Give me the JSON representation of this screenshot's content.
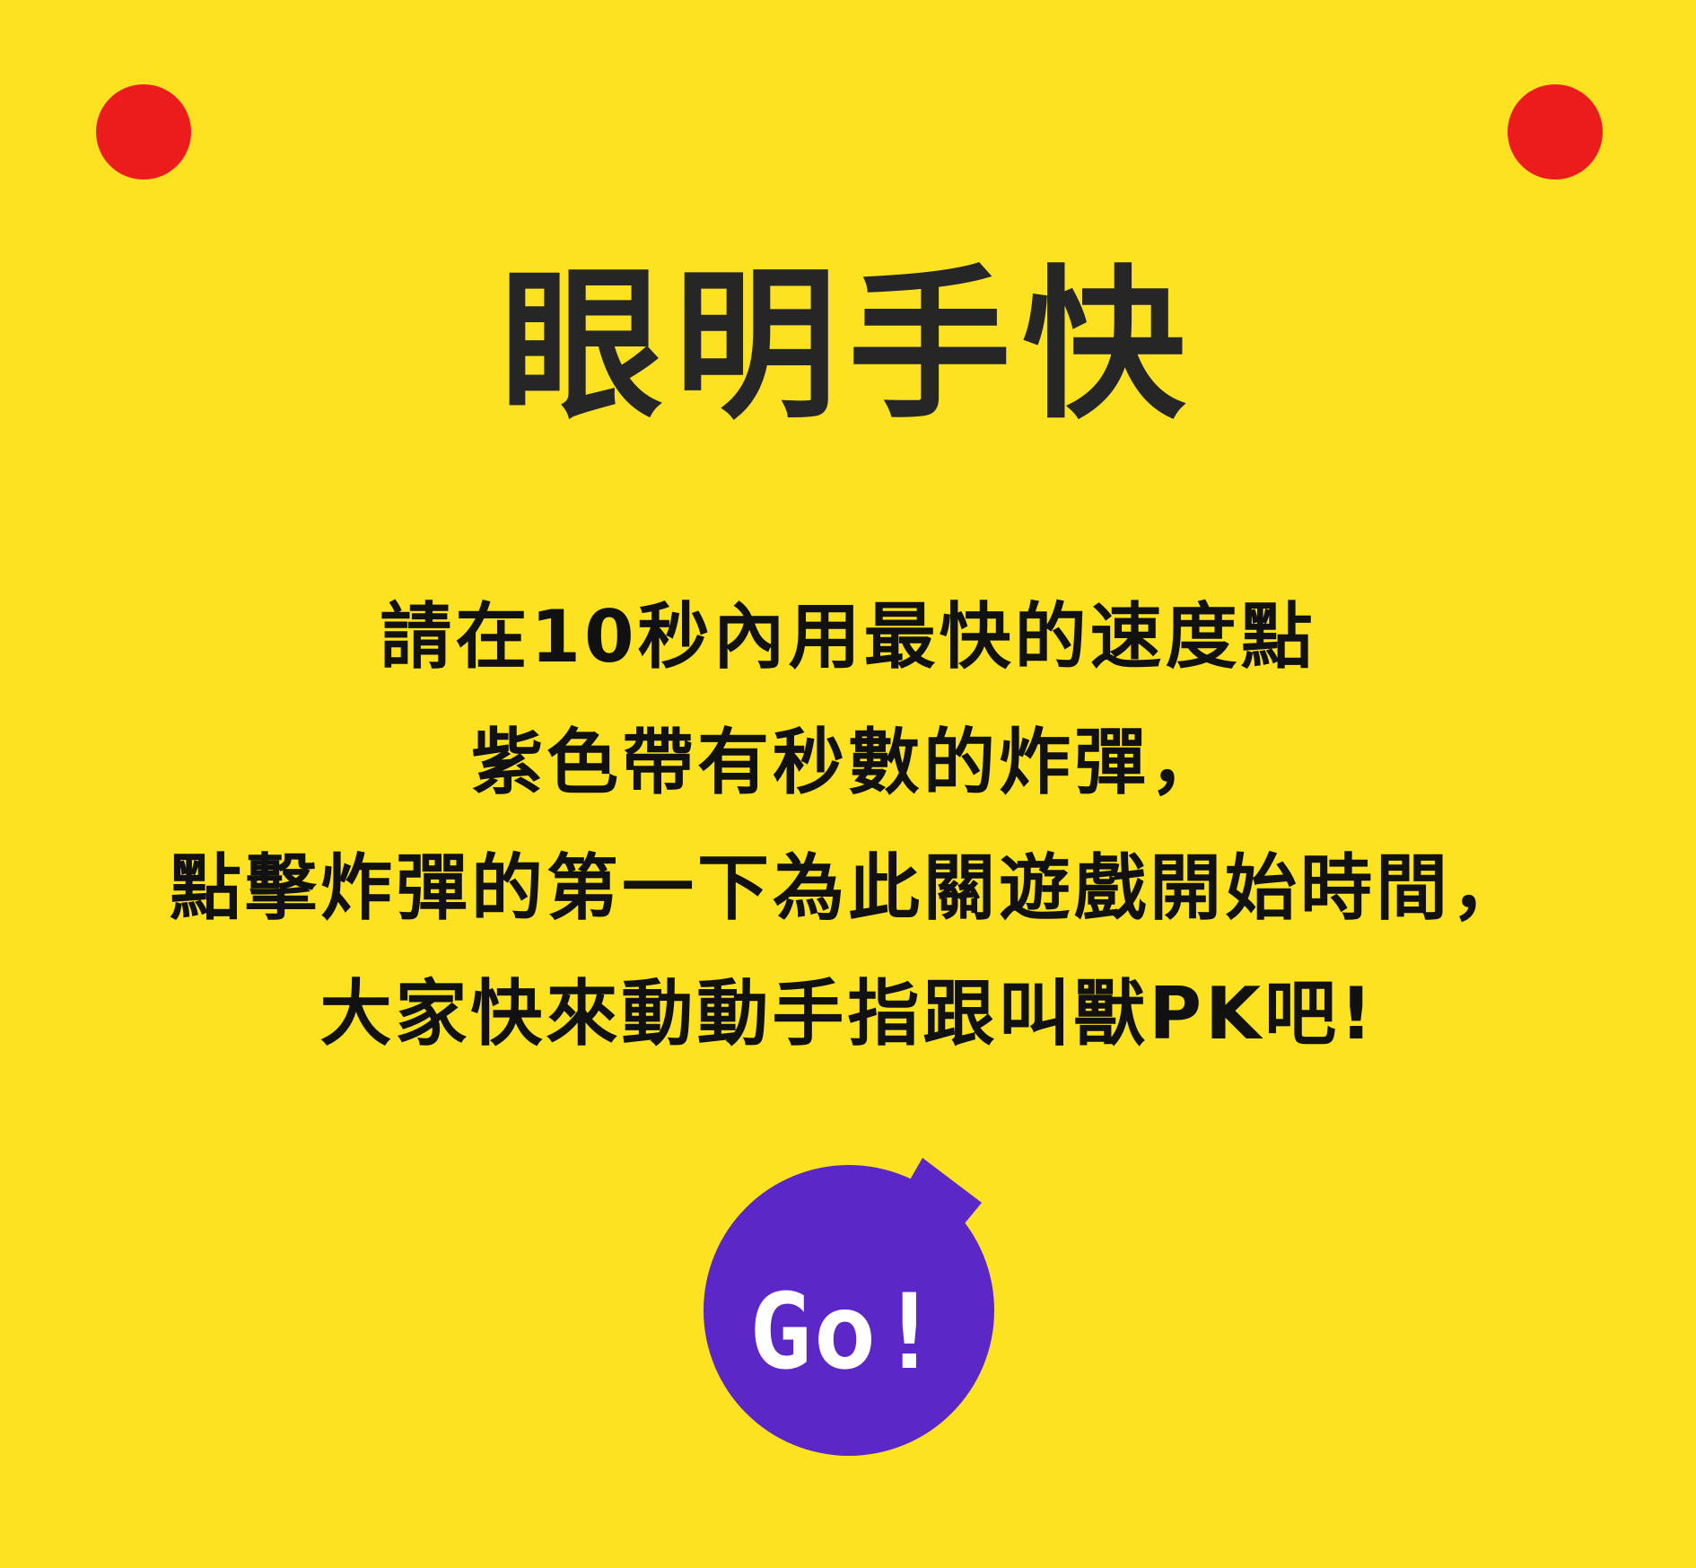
{
  "game": {
    "title": "眼明手快",
    "instructions": [
      "請在10秒內用最快的速度點",
      "紫色帶有秒數的炸彈，",
      "點擊炸彈的第一下為此關遊戲開始時間，",
      "大家快來動動手指跟叫獸PK吧!"
    ],
    "start_button": {
      "label": "Go!",
      "icon": "bomb-icon"
    }
  },
  "colors": {
    "background": "#FDE221",
    "corner_dot": "#EC1C1C",
    "bomb": "#5B27C6",
    "title_text": "#262626",
    "body_text": "#111111",
    "button_text": "#FFFFFF"
  }
}
